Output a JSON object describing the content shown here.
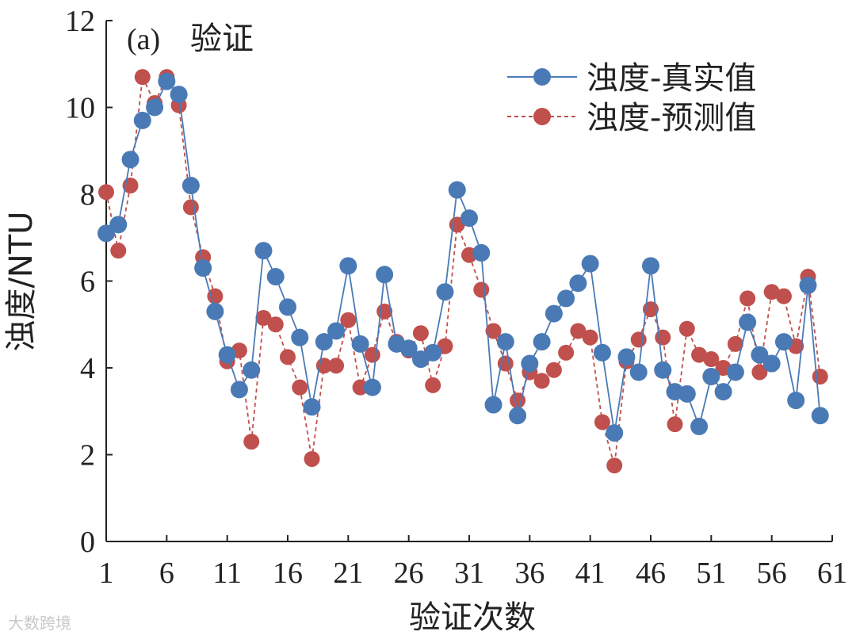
{
  "chart_data": {
    "type": "line",
    "panel_label": "(a)",
    "title": "验证",
    "xlabel": "验证次数",
    "ylabel": "浊度/NTU",
    "xlim": [
      1,
      61
    ],
    "ylim": [
      0,
      12
    ],
    "x_ticks": [
      1,
      6,
      11,
      16,
      21,
      26,
      31,
      36,
      41,
      46,
      51,
      56,
      61
    ],
    "y_ticks": [
      0,
      2,
      4,
      6,
      8,
      10,
      12
    ],
    "legend_position": "top-right",
    "series": [
      {
        "name": "浊度-真实值",
        "color": "#4a7ab5",
        "line_style": "solid",
        "marker": "circle",
        "values": [
          7.1,
          7.3,
          8.8,
          9.7,
          10.0,
          10.6,
          10.3,
          8.2,
          6.3,
          5.3,
          4.3,
          3.5,
          3.95,
          6.7,
          6.1,
          5.4,
          4.7,
          3.1,
          4.6,
          4.85,
          6.35,
          4.55,
          3.55,
          6.15,
          4.55,
          4.45,
          4.2,
          4.35,
          5.75,
          8.1,
          7.45,
          6.65,
          3.15,
          4.6,
          2.9,
          4.1,
          4.6,
          5.25,
          5.6,
          5.95,
          6.4,
          4.35,
          2.5,
          4.25,
          3.9,
          6.35,
          3.95,
          3.45,
          3.4,
          2.65,
          3.8,
          3.45,
          3.9,
          5.05,
          4.3,
          4.1,
          4.6,
          3.25,
          5.9,
          2.9
        ]
      },
      {
        "name": "浊度-预测值",
        "color": "#c0504d",
        "line_style": "dashed",
        "marker": "circle",
        "values": [
          8.05,
          6.7,
          8.2,
          10.7,
          10.1,
          10.7,
          10.05,
          7.7,
          6.55,
          5.65,
          4.15,
          4.4,
          2.3,
          5.15,
          5.0,
          4.25,
          3.55,
          1.9,
          4.05,
          4.05,
          5.1,
          3.55,
          4.3,
          5.3,
          4.6,
          4.4,
          4.8,
          3.6,
          4.5,
          7.3,
          6.6,
          5.8,
          4.85,
          4.1,
          3.25,
          3.9,
          3.7,
          3.95,
          4.35,
          4.85,
          4.7,
          2.75,
          1.75,
          4.15,
          4.65,
          5.35,
          4.7,
          2.7,
          4.9,
          4.3,
          4.2,
          4.0,
          4.55,
          5.6,
          3.9,
          5.75,
          5.65,
          4.5,
          6.1,
          3.8
        ]
      }
    ]
  },
  "footer": {
    "watermark": "大数跨境"
  }
}
